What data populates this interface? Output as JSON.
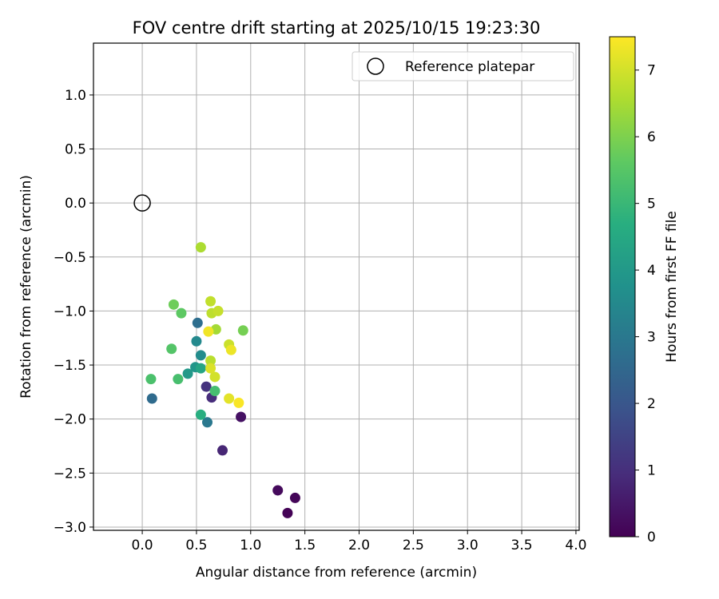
{
  "chart_data": {
    "type": "scatter",
    "title": "FOV centre drift starting at 2025/10/15 19:23:30",
    "xlabel": "Angular distance from reference (arcmin)",
    "ylabel": "Rotation from reference (arcmin)",
    "xlim": [
      -0.45,
      4.03
    ],
    "ylim": [
      -3.03,
      1.48
    ],
    "xticks": [
      0.0,
      0.5,
      1.0,
      1.5,
      2.0,
      2.5,
      3.0,
      3.5,
      4.0
    ],
    "xtick_labels": [
      "0.0",
      "0.5",
      "1.0",
      "1.5",
      "2.0",
      "2.5",
      "3.0",
      "3.5",
      "4.0"
    ],
    "yticks": [
      1.0,
      0.5,
      0.0,
      -0.5,
      -1.0,
      -1.5,
      -2.0,
      -2.5,
      -3.0
    ],
    "ytick_labels": [
      "1.0",
      "0.5",
      "0.0",
      "−0.5",
      "−1.0",
      "−1.5",
      "−2.0",
      "−2.5",
      "−3.0"
    ],
    "grid": true,
    "legend": {
      "position": "upper-right",
      "entries": [
        "Reference platepar"
      ]
    },
    "reference_point": {
      "x": 0.0,
      "y": 0.0
    },
    "colorbar": {
      "label": "Hours from first FF file",
      "range": [
        0,
        7.5
      ],
      "ticks": [
        0,
        1,
        2,
        3,
        4,
        5,
        6,
        7
      ],
      "tick_labels": [
        "0",
        "1",
        "2",
        "3",
        "4",
        "5",
        "6",
        "7"
      ],
      "colormap": "viridis"
    },
    "points": [
      {
        "x": 1.34,
        "y": -2.87,
        "hours": 0.05
      },
      {
        "x": 1.41,
        "y": -2.73,
        "hours": 0.1
      },
      {
        "x": 1.25,
        "y": -2.66,
        "hours": 0.2
      },
      {
        "x": 0.91,
        "y": -1.98,
        "hours": 0.35
      },
      {
        "x": 0.74,
        "y": -2.29,
        "hours": 0.8
      },
      {
        "x": 0.64,
        "y": -1.8,
        "hours": 0.95
      },
      {
        "x": 0.59,
        "y": -1.7,
        "hours": 1.1
      },
      {
        "x": 0.09,
        "y": -1.81,
        "hours": 2.6
      },
      {
        "x": 0.51,
        "y": -1.11,
        "hours": 2.7
      },
      {
        "x": 0.6,
        "y": -2.03,
        "hours": 3.0
      },
      {
        "x": 0.5,
        "y": -1.28,
        "hours": 3.5
      },
      {
        "x": 0.54,
        "y": -1.41,
        "hours": 3.6
      },
      {
        "x": 0.49,
        "y": -1.52,
        "hours": 3.9
      },
      {
        "x": 0.42,
        "y": -1.58,
        "hours": 4.0
      },
      {
        "x": 0.54,
        "y": -1.53,
        "hours": 4.4
      },
      {
        "x": 0.54,
        "y": -1.96,
        "hours": 4.7
      },
      {
        "x": 0.67,
        "y": -1.74,
        "hours": 5.2
      },
      {
        "x": 0.33,
        "y": -1.63,
        "hours": 5.25
      },
      {
        "x": 0.08,
        "y": -1.63,
        "hours": 5.3
      },
      {
        "x": 0.27,
        "y": -1.35,
        "hours": 5.45
      },
      {
        "x": 0.36,
        "y": -1.02,
        "hours": 5.6
      },
      {
        "x": 0.29,
        "y": -0.94,
        "hours": 5.8
      },
      {
        "x": 0.93,
        "y": -1.18,
        "hours": 5.9
      },
      {
        "x": 0.68,
        "y": -1.17,
        "hours": 6.45
      },
      {
        "x": 0.54,
        "y": -0.41,
        "hours": 6.55
      },
      {
        "x": 0.63,
        "y": -1.46,
        "hours": 6.7
      },
      {
        "x": 0.64,
        "y": -1.02,
        "hours": 6.75
      },
      {
        "x": 0.63,
        "y": -0.91,
        "hours": 6.8
      },
      {
        "x": 0.7,
        "y": -1.0,
        "hours": 6.85
      },
      {
        "x": 0.8,
        "y": -1.31,
        "hours": 6.9
      },
      {
        "x": 0.67,
        "y": -1.61,
        "hours": 7.0
      },
      {
        "x": 0.63,
        "y": -1.53,
        "hours": 7.1
      },
      {
        "x": 0.8,
        "y": -1.81,
        "hours": 7.2
      },
      {
        "x": 0.82,
        "y": -1.36,
        "hours": 7.3
      },
      {
        "x": 0.61,
        "y": -1.19,
        "hours": 7.35
      },
      {
        "x": 0.89,
        "y": -1.85,
        "hours": 7.45
      }
    ]
  }
}
